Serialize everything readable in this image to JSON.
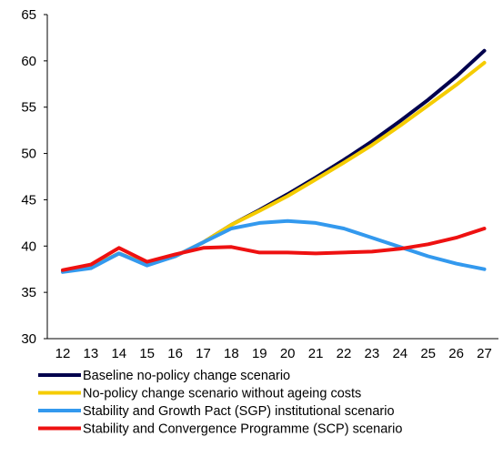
{
  "chart_data": {
    "type": "line",
    "title": "",
    "xlabel": "",
    "ylabel": "",
    "categories": [
      "12",
      "13",
      "14",
      "15",
      "16",
      "17",
      "18",
      "19",
      "20",
      "21",
      "22",
      "23",
      "24",
      "25",
      "26",
      "27"
    ],
    "ylim": [
      30,
      65
    ],
    "yticks": [
      30,
      35,
      40,
      45,
      50,
      55,
      60,
      65
    ],
    "grid": false,
    "legend_position": "bottom",
    "series": [
      {
        "name": "Baseline no-policy change scenario",
        "color": "#00004d",
        "values": [
          37.3,
          37.7,
          39.2,
          38.0,
          38.9,
          40.4,
          42.3,
          43.9,
          45.6,
          47.4,
          49.3,
          51.3,
          53.5,
          55.8,
          58.3,
          61.1
        ]
      },
      {
        "name": "No-policy change scenario without ageing costs",
        "color": "#f5cc00",
        "values": [
          37.3,
          37.7,
          39.2,
          38.0,
          38.9,
          40.4,
          42.3,
          43.8,
          45.4,
          47.2,
          49.0,
          50.9,
          53.0,
          55.2,
          57.4,
          59.8
        ]
      },
      {
        "name": "Stability and Growth Pact (SGP) institutional scenario",
        "color": "#3399ee",
        "values": [
          37.2,
          37.6,
          39.2,
          37.9,
          38.9,
          40.4,
          41.9,
          42.5,
          42.7,
          42.5,
          41.9,
          40.9,
          39.9,
          38.9,
          38.1,
          37.5
        ]
      },
      {
        "name": "Stability and Convergence Programme (SCP) scenario",
        "color": "#ee1111",
        "values": [
          37.4,
          38.0,
          39.8,
          38.3,
          39.1,
          39.8,
          39.9,
          39.3,
          39.3,
          39.2,
          39.3,
          39.4,
          39.7,
          40.2,
          40.9,
          41.9
        ]
      }
    ]
  }
}
